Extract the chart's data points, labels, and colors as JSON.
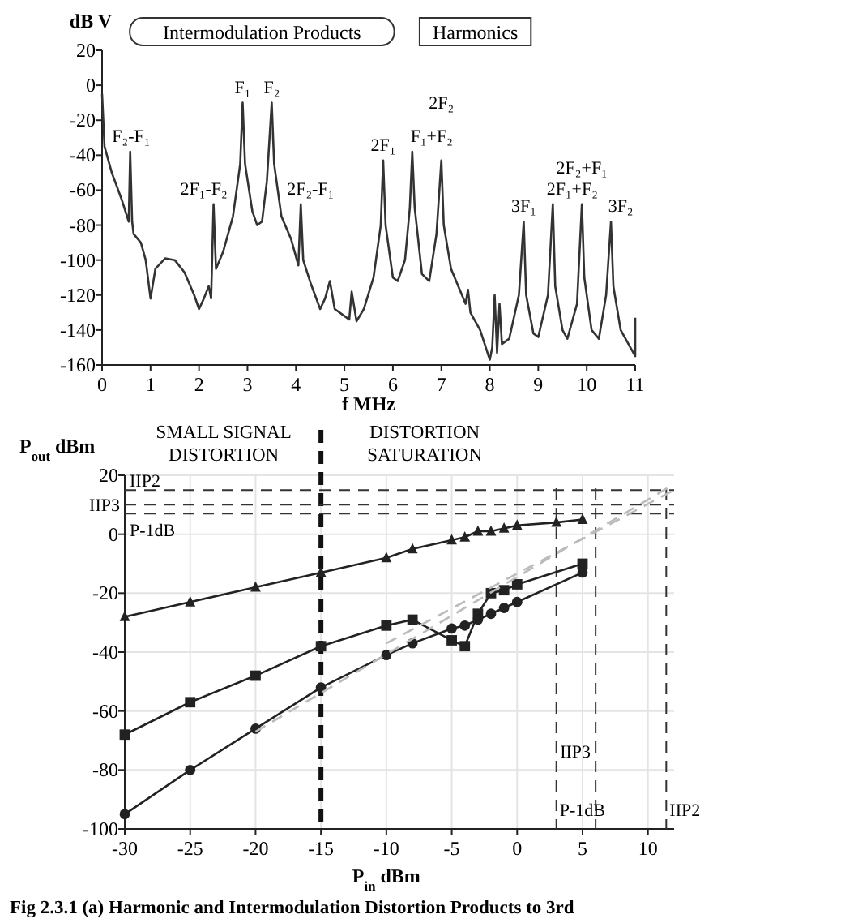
{
  "chart_data": [
    {
      "type": "line",
      "ylabel": "dB V",
      "xlabel": "f MHz",
      "color": "#333333",
      "marker": "none",
      "line_style": "solid",
      "x": [
        0,
        0.05,
        0.2,
        0.4,
        0.55,
        0.58,
        0.62,
        0.65,
        0.8,
        0.9,
        1.0,
        1.1,
        1.3,
        1.5,
        1.7,
        1.9,
        2.0,
        2.1,
        2.2,
        2.25,
        2.3,
        2.35,
        2.5,
        2.7,
        2.85,
        2.9,
        2.95,
        3.1,
        3.2,
        3.3,
        3.4,
        3.5,
        3.55,
        3.7,
        3.9,
        4.05,
        4.1,
        4.15,
        4.3,
        4.5,
        4.6,
        4.7,
        4.8,
        5.0,
        5.1,
        5.15,
        5.25,
        5.4,
        5.6,
        5.75,
        5.8,
        5.85,
        6.0,
        6.1,
        6.25,
        6.35,
        6.4,
        6.45,
        6.6,
        6.75,
        6.9,
        7.0,
        7.05,
        7.2,
        7.5,
        7.55,
        7.6,
        7.8,
        8.0,
        8.05,
        8.1,
        8.15,
        8.2,
        8.25,
        8.4,
        8.6,
        8.7,
        8.75,
        8.9,
        9.0,
        9.2,
        9.3,
        9.35,
        9.5,
        9.6,
        9.8,
        9.9,
        9.95,
        10.1,
        10.25,
        10.4,
        10.5,
        10.55,
        10.7,
        10.9,
        11,
        11
      ],
      "values": [
        -5,
        -35,
        -50,
        -65,
        -78,
        -38,
        -78,
        -85,
        -90,
        -100,
        -122,
        -105,
        -99,
        -100,
        -107,
        -120,
        -128,
        -122,
        -115,
        -122,
        -68,
        -105,
        -95,
        -75,
        -45,
        -10,
        -45,
        -72,
        -80,
        -78,
        -55,
        -10,
        -45,
        -75,
        -88,
        -103,
        -68,
        -100,
        -113,
        -128,
        -122,
        -112,
        -128,
        -132,
        -134,
        -118,
        -135,
        -128,
        -110,
        -80,
        -43,
        -80,
        -110,
        -112,
        -100,
        -70,
        -38,
        -70,
        -108,
        -112,
        -85,
        -43,
        -80,
        -105,
        -125,
        -117,
        -130,
        -140,
        -157,
        -150,
        -120,
        -153,
        -125,
        -148,
        -145,
        -120,
        -78,
        -120,
        -142,
        -144,
        -120,
        -68,
        -115,
        -140,
        -145,
        -125,
        -68,
        -110,
        -140,
        -145,
        -120,
        -78,
        -115,
        -140,
        -150,
        -155,
        -133
      ],
      "xlim": [
        0,
        11
      ],
      "xticks": [
        0,
        1,
        2,
        3,
        4,
        5,
        6,
        7,
        8,
        9,
        10,
        11
      ],
      "ylim": [
        -160,
        20
      ],
      "yticks": [
        -160,
        -140,
        -120,
        -100,
        -80,
        -60,
        -40,
        -20,
        0,
        20
      ],
      "annotations": [
        "Intermodulation Products",
        "Harmonics",
        {
          "text": "F₂-F₁",
          "x": 0.6,
          "y": -38
        },
        {
          "text": "2F₁-F₂",
          "x": 2.3,
          "y": -68
        },
        {
          "text": "F₁",
          "x": 2.9,
          "y": -10
        },
        {
          "text": "F₂",
          "x": 3.5,
          "y": -10
        },
        {
          "text": "2F₂-F₁",
          "x": 4.1,
          "y": -68
        },
        {
          "text": "2F₁",
          "x": 5.8,
          "y": -43
        },
        {
          "text": "F₁+F₂",
          "x": 6.4,
          "y": -38
        },
        {
          "text": "2F₂",
          "x": 7.0,
          "y": -43
        },
        {
          "text": "3F₁",
          "x": 8.7,
          "y": -78
        },
        {
          "text": "2F₁+F₂",
          "x": 9.3,
          "y": -68
        },
        {
          "text": "2F₂+F₁",
          "x": 9.9,
          "y": -68
        },
        {
          "text": "3F₂",
          "x": 10.5,
          "y": -78
        }
      ]
    },
    {
      "type": "line",
      "ylabel": "P$_{out}$ dBm",
      "xlabel": "P$_{in}$ dBm",
      "grid": true,
      "xlim": [
        -30,
        12
      ],
      "xticks": [
        -30,
        -25,
        -20,
        -15,
        -10,
        -5,
        0,
        5,
        10
      ],
      "ylim": [
        -100,
        20
      ],
      "yticks": [
        -100,
        -80,
        -60,
        -40,
        -20,
        0,
        20
      ],
      "series": [
        {
          "color": "#222222",
          "marker": "triangle",
          "line_style": "solid",
          "x": [
            -30,
            -25,
            -20,
            -15,
            -10,
            -8,
            -5,
            -4,
            -3,
            -2,
            -1,
            0,
            3,
            5
          ],
          "values": [
            -28,
            -23,
            -18,
            -13,
            -8,
            -5,
            -2,
            -1,
            1,
            1,
            2,
            3,
            4,
            5
          ]
        },
        {
          "color": "#222222",
          "marker": "square",
          "line_style": "solid",
          "x": [
            -30,
            -25,
            -20,
            -15,
            -10,
            -8,
            -5,
            -4,
            -3,
            -2,
            -1,
            0,
            5
          ],
          "values": [
            -68,
            -57,
            -48,
            -38,
            -31,
            -29,
            -36,
            -38,
            -27,
            -20,
            -19,
            -17,
            -10
          ]
        },
        {
          "color": "#222222",
          "marker": "circle",
          "line_style": "solid",
          "x": [
            -30,
            -25,
            -20,
            -15,
            -10,
            -8,
            -5,
            -4,
            -3,
            -2,
            -1,
            0,
            5
          ],
          "values": [
            -95,
            -80,
            -66,
            -52,
            -41,
            -37,
            -32,
            -31,
            -29,
            -27,
            -25,
            -23,
            -13
          ]
        },
        {
          "color": "#bbbbbb",
          "marker": "none",
          "line_style": "dashed",
          "x": [
            -20,
            12
          ],
          "values": [
            -67,
            17
          ]
        },
        {
          "color": "#bbbbbb",
          "marker": "none",
          "line_style": "dashed",
          "x": [
            -10,
            12
          ],
          "values": [
            -37,
            15
          ]
        }
      ],
      "ref_lines": [
        {
          "axis": "x",
          "value": -15,
          "label": null,
          "color": "#111111",
          "line_style": "dashed"
        },
        {
          "axis": "y",
          "value": 15,
          "label": "IIP2",
          "color": "#333333",
          "line_style": "dashed"
        },
        {
          "axis": "y",
          "value": 10,
          "label": "IIP3",
          "color": "#333333",
          "line_style": "dashed"
        },
        {
          "axis": "y",
          "value": 7,
          "label": "P-1dB",
          "color": "#333333",
          "line_style": "dashed"
        },
        {
          "axis": "x",
          "value": 3,
          "label": "P-1dB",
          "color": "#333333",
          "line_style": "dashed"
        },
        {
          "axis": "x",
          "value": 6,
          "label": "IIP3",
          "color": "#333333",
          "line_style": "dashed"
        },
        {
          "axis": "x",
          "value": 11.4,
          "label": "IIP2",
          "color": "#333333",
          "line_style": "dashed"
        }
      ],
      "annotations": [
        "SMALL SIGNAL DISTORTION",
        "DISTORTION SATURATION",
        "Fig 2.3.1 (a) Harmonic and Intermodulation Distortion Products to 3rd"
      ]
    }
  ]
}
